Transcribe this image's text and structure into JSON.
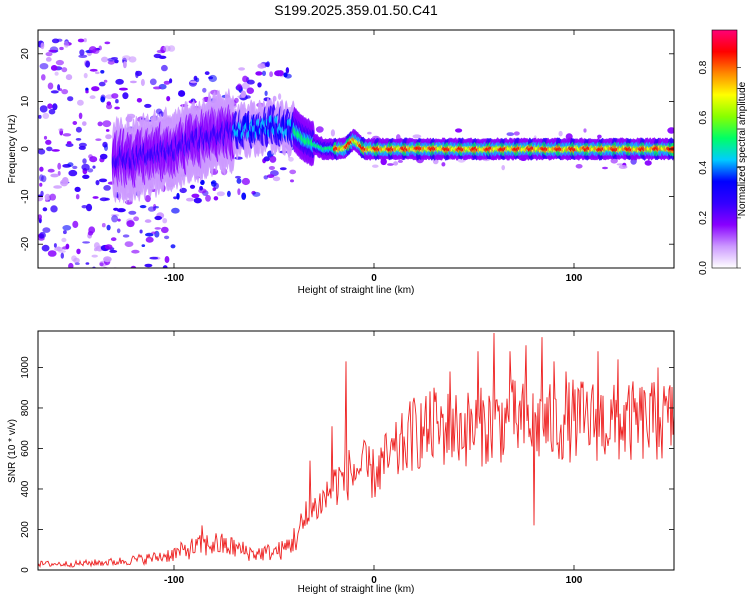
{
  "title": "S199.2025.359.01.50.C41",
  "chart_data": [
    {
      "type": "heatmap",
      "name": "spectrogram",
      "xlabel": "Height of straight line (km)",
      "ylabel": "Frequency (Hz)",
      "xlim": [
        -168,
        150
      ],
      "ylim": [
        -25,
        25
      ],
      "xticks": [
        -100,
        0,
        100
      ],
      "yticks": [
        -20,
        -10,
        0,
        10,
        20
      ],
      "colorbar": {
        "label": "Normalized spectral amplitude",
        "range": [
          0.0,
          0.95
        ],
        "ticks": [
          "0.0",
          "0.2",
          "0.4",
          "0.6",
          "0.8"
        ],
        "tick_values": [
          0.0,
          0.2,
          0.4,
          0.6,
          0.8
        ],
        "colors": [
          "#ffffff",
          "#cc99ff",
          "#8800ff",
          "#3300ff",
          "#0000ff",
          "#00ccff",
          "#00ff66",
          "#88ff00",
          "#ffff00",
          "#ff8800",
          "#ff0000",
          "#ff0077"
        ]
      },
      "ridge": {
        "description": "dominant frequency track",
        "x": [
          -120,
          -100,
          -80,
          -65,
          -50,
          -40,
          -35,
          -30,
          -25,
          -20,
          -15,
          -10,
          -5,
          0,
          10,
          30,
          60,
          100,
          150
        ],
        "y": [
          -2,
          0,
          3,
          4,
          5,
          4,
          2,
          1,
          0,
          0,
          0,
          2,
          0,
          0,
          0,
          0,
          0,
          0,
          0
        ]
      }
    },
    {
      "type": "line",
      "name": "snr",
      "xlabel": "Height of straight line (km)",
      "ylabel": "SNR (10 * v/v)",
      "xlim": [
        -168,
        150
      ],
      "ylim": [
        0,
        1180
      ],
      "xticks": [
        -100,
        0,
        100
      ],
      "yticks": [
        0,
        200,
        400,
        600,
        800,
        1000
      ],
      "color": "#ee2222",
      "series": [
        {
          "name": "SNR",
          "x": [
            -168,
            -150,
            -130,
            -110,
            -100,
            -90,
            -80,
            -70,
            -60,
            -50,
            -45,
            -40,
            -35,
            -30,
            -25,
            -20,
            -15,
            -12,
            -10,
            -8,
            -5,
            0,
            5,
            10,
            15,
            20,
            25,
            30,
            40,
            50,
            60,
            70,
            80,
            90,
            100,
            110,
            120,
            130,
            140,
            150
          ],
          "y": [
            30,
            30,
            40,
            60,
            80,
            110,
            130,
            110,
            80,
            90,
            100,
            150,
            220,
            300,
            350,
            420,
            460,
            480,
            480,
            500,
            500,
            470,
            530,
            560,
            620,
            680,
            680,
            700,
            700,
            700,
            720,
            740,
            720,
            720,
            740,
            740,
            720,
            730,
            730,
            740
          ],
          "spikes": [
            {
              "x": -86,
              "y": 220
            },
            {
              "x": -32,
              "y": 540
            },
            {
              "x": -21,
              "y": 710
            },
            {
              "x": -14,
              "y": 1030
            },
            {
              "x": 20,
              "y": 850
            },
            {
              "x": 30,
              "y": 900
            },
            {
              "x": 38,
              "y": 980
            },
            {
              "x": 52,
              "y": 1080
            },
            {
              "x": 60,
              "y": 1170
            },
            {
              "x": 68,
              "y": 1080
            },
            {
              "x": 76,
              "y": 1110
            },
            {
              "x": 80,
              "y": 220
            },
            {
              "x": 84,
              "y": 1150
            },
            {
              "x": 90,
              "y": 1030
            },
            {
              "x": 96,
              "y": 980
            },
            {
              "x": 112,
              "y": 1080
            },
            {
              "x": 122,
              "y": 1040
            },
            {
              "x": 142,
              "y": 1000
            }
          ]
        }
      ]
    }
  ]
}
